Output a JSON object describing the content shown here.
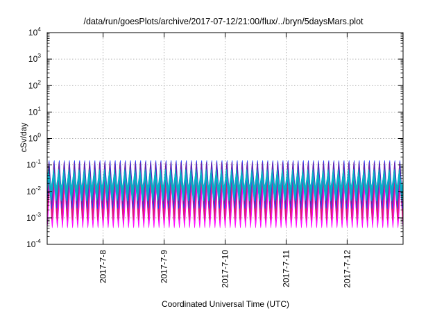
{
  "chart_data": {
    "type": "area",
    "title": "/data/run/goesPlots/archive/2017-07-12/21:00/flux/../bryn/5daysMars.plot",
    "xlabel": "Coordinated Universal Time (UTC)",
    "ylabel": "cSv/day",
    "y_scale": "log",
    "ylim": [
      0.0001,
      10000
    ],
    "y_ticks": [
      {
        "base": "10",
        "exp": "-4",
        "value": 0.0001
      },
      {
        "base": "10",
        "exp": "-3",
        "value": 0.001
      },
      {
        "base": "10",
        "exp": "-2",
        "value": 0.01
      },
      {
        "base": "10",
        "exp": "-1",
        "value": 0.1
      },
      {
        "base": "10",
        "exp": "0",
        "value": 1
      },
      {
        "base": "10",
        "exp": "1",
        "value": 10
      },
      {
        "base": "10",
        "exp": "2",
        "value": 100
      },
      {
        "base": "10",
        "exp": "3",
        "value": 1000
      },
      {
        "base": "10",
        "exp": "4",
        "value": 10000
      }
    ],
    "xlim": [
      "2017-07-07T02:00",
      "2017-07-12T22:00"
    ],
    "x_ticks": [
      {
        "label": "2017-7-8",
        "date": "2017-07-08"
      },
      {
        "label": "2017-7-9",
        "date": "2017-07-09"
      },
      {
        "label": "2017-7-10",
        "date": "2017-07-10"
      },
      {
        "label": "2017-7-11",
        "date": "2017-07-11"
      },
      {
        "label": "2017-7-12",
        "date": "2017-07-12"
      }
    ],
    "grid": true,
    "oscillation_period_hours": 2,
    "series": [
      {
        "color": "#ff00ff",
        "min": 0.0008,
        "max": 0.022
      },
      {
        "color": "#d81e6a",
        "min": 0.0015,
        "max": 0.055
      },
      {
        "color": "#1f3fff",
        "min": 0.004,
        "max": 0.12
      },
      {
        "color": "#7020a0",
        "min": 0.006,
        "max": 0.1
      },
      {
        "color": "#00b8c8",
        "min": 0.008,
        "max": 0.05
      }
    ]
  }
}
